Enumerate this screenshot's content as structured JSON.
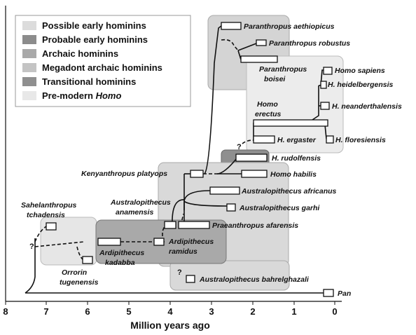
{
  "legend": [
    {
      "label": "Possible early hominins",
      "color": "#dcdcdc"
    },
    {
      "label": "Probable early hominins",
      "color": "#8c8c8c"
    },
    {
      "label": "Archaic hominins",
      "color": "#a9a9a9"
    },
    {
      "label": "Megadont archaic hominins",
      "color": "#c4c4c4"
    },
    {
      "label": "Transitional hominins",
      "color": "#8f8f8f"
    },
    {
      "label": "Pre-modern Homo",
      "label_plain": "Pre-modern ",
      "label_italic": "Homo",
      "color": "#e8e8e8"
    }
  ],
  "axis": {
    "title": "Million years ago",
    "ticks": [
      "8",
      "7",
      "6",
      "5",
      "4",
      "3",
      "2",
      "1",
      "0"
    ]
  },
  "uncertain_marker": "?",
  "species": {
    "p_aethiopicus": "Paranthropus aethiopicus",
    "p_robustus": "Paranthropus robustus",
    "p_boisei_1": "Paranthropus",
    "p_boisei_2": "boisei",
    "h_sapiens": "Homo sapiens",
    "h_heidelbergensis": "H. heidelbergensis",
    "h_neanderthalensis": "H. neanderthalensis",
    "h_erectus_1": "Homo",
    "h_erectus_2": "erectus",
    "h_ergaster": "H. ergaster",
    "h_floresiensis": "H. floresiensis",
    "h_rudolfensis": "H. rudolfensis",
    "h_habilis": "Homo habilis",
    "k_platyops": "Kenyanthropus platyops",
    "a_africanus": "Australopithecus africanus",
    "a_garhi": "Australopithecus garhi",
    "a_anamensis_1": "Australopithecus",
    "a_anamensis_2": "anamensis",
    "pr_afarensis": "Praeanthropus afarensis",
    "s_tchadensis_1": "Sahelanthropus",
    "s_tchadensis_2": "tchadensis",
    "ar_kadabba_1": "Ardipithecus",
    "ar_kadabba_2": "kadabba",
    "ar_ramidus_1": "Ardipithecus",
    "ar_ramidus_2": "ramidus",
    "o_tugenensis_1": "Orrorin",
    "o_tugenensis_2": "tugenensis",
    "a_bahrelghazali": "Australopithecus bahrelghazali",
    "pan": "Pan"
  }
}
